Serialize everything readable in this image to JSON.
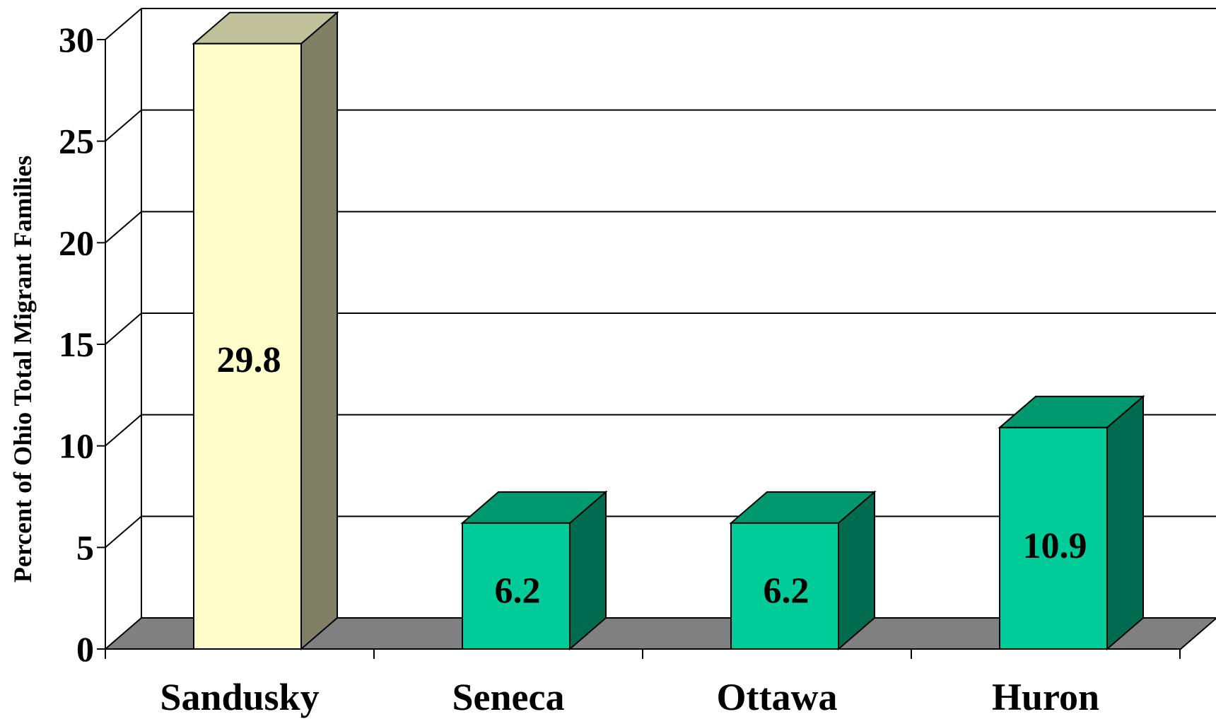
{
  "chart_data": {
    "type": "bar",
    "style": "3d-column",
    "title": "",
    "xlabel": "",
    "ylabel": "Percent of Ohio Total Migrant Families",
    "categories": [
      "Sandusky",
      "Seneca",
      "Ottawa",
      "Huron"
    ],
    "values": [
      29.8,
      6.2,
      6.2,
      10.9
    ],
    "value_labels": [
      "29.8",
      "6.2",
      "6.2",
      "10.9"
    ],
    "ylim": [
      0,
      30
    ],
    "yticks": [
      0,
      5,
      10,
      15,
      20,
      25,
      30
    ],
    "ytick_labels": [
      "0",
      "5",
      "10",
      "15",
      "20",
      "25",
      "30"
    ],
    "grid": true,
    "legend": "none",
    "colors": {
      "highlight_front": "#FFFFCC",
      "highlight_top": "#C0C09A",
      "highlight_side": "#808066",
      "bar_front": "#00CC99",
      "bar_top": "#00996F",
      "bar_side": "#006B4F",
      "floor": "#808080",
      "background": "#FFFFFF"
    },
    "highlight_index": 0
  }
}
